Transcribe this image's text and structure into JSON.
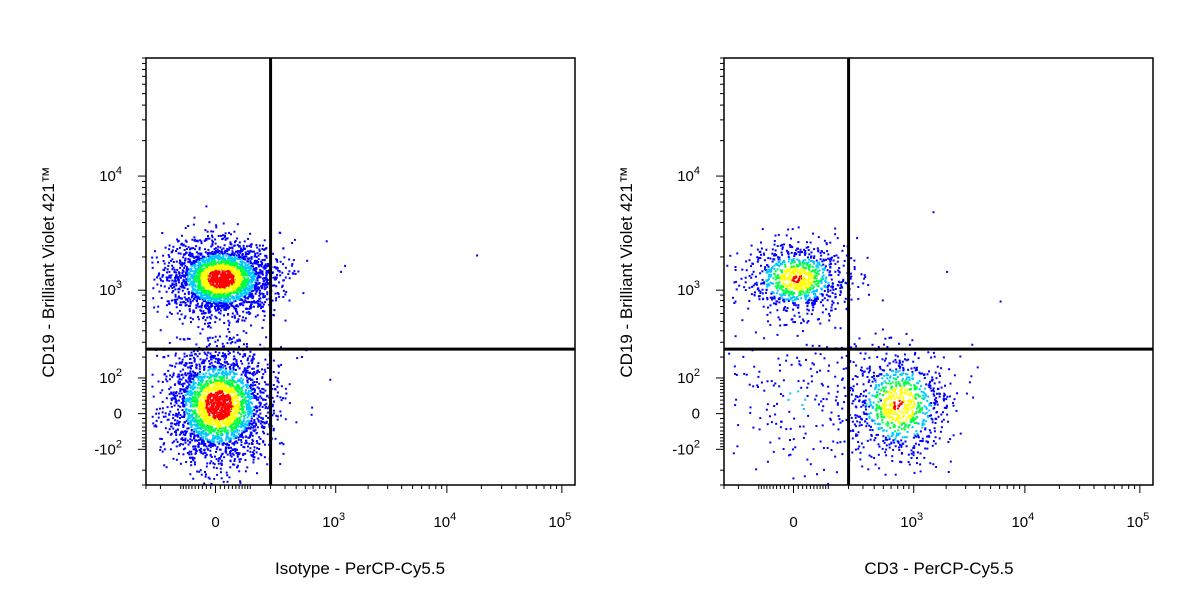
{
  "chart_data": [
    {
      "type": "scatter",
      "subtype": "flow-cytometry-density-dot-plot",
      "title": "",
      "xlabel": "Isotype - PerCP-Cy5.5",
      "ylabel": "CD19 - Brilliant Violet 421™",
      "x_scale": "biexponential",
      "y_scale": "biexponential",
      "x_tick_labels": [
        "0",
        "10^3",
        "10^4",
        "10^5"
      ],
      "y_tick_labels": [
        "-10^2",
        "0",
        "10^2",
        "10^3",
        "10^4"
      ],
      "gates": {
        "x": 200,
        "y": 250
      },
      "populations": [
        {
          "name": "",
          "x_center": 10,
          "y_center": 1300,
          "events": "high"
        },
        {
          "name": "",
          "x_center": 5,
          "y_center": 20,
          "events": "high"
        }
      ],
      "scattered_events": [
        {
          "x": 800,
          "y": 2800
        },
        {
          "x": 1100,
          "y": 1500
        },
        {
          "x": 1200,
          "y": 1700
        },
        {
          "x": 18000,
          "y": 2100
        },
        {
          "x": 400,
          "y": 200
        },
        {
          "x": 500,
          "y": 250
        }
      ],
      "colors": {
        "low": "#0000ff",
        "mid1": "#00c8ff",
        "mid2": "#00ff40",
        "mid3": "#ffff00",
        "high": "#ff0000"
      }
    },
    {
      "type": "scatter",
      "subtype": "flow-cytometry-density-dot-plot",
      "title": "",
      "xlabel": "CD3 - PerCP-Cy5.5",
      "ylabel": "CD19 - Brilliant Violet 421™",
      "x_scale": "biexponential",
      "y_scale": "biexponential",
      "x_tick_labels": [
        "0",
        "10^3",
        "10^4",
        "10^5"
      ],
      "y_tick_labels": [
        "-10^2",
        "0",
        "10^2",
        "10^3",
        "10^4"
      ],
      "gates": {
        "x": 200,
        "y": 250
      },
      "populations": [
        {
          "name": "",
          "x_center": 5,
          "y_center": 1300,
          "events": "medium"
        },
        {
          "name": "",
          "x_center": 5,
          "y_center": 30,
          "events": "low"
        },
        {
          "name": "",
          "x_center": 700,
          "y_center": 20,
          "events": "medium"
        }
      ],
      "scattered_events": [
        {
          "x": 2000,
          "y": 1500
        },
        {
          "x": 6000,
          "y": 800
        },
        {
          "x": 1500,
          "y": 5000
        }
      ],
      "colors": {
        "low": "#0000ff",
        "mid1": "#00c8ff",
        "mid2": "#00ff40",
        "mid3": "#ffff00",
        "high": "#ff0000"
      }
    }
  ]
}
